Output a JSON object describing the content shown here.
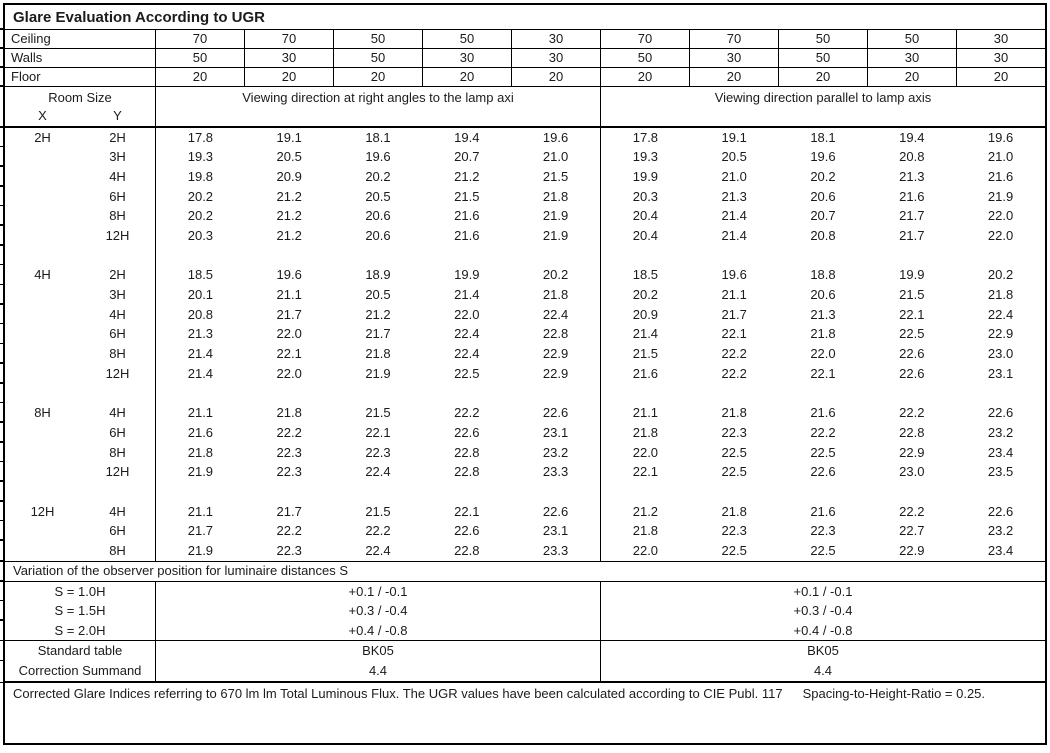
{
  "title": "Glare Evaluation According to UGR",
  "colors": {
    "text": "#1b1b1b",
    "border": "#000000",
    "background": "#ffffff"
  },
  "surface_rows": [
    {
      "label": "Ceiling",
      "values": [
        "70",
        "70",
        "50",
        "50",
        "30",
        "70",
        "70",
        "50",
        "50",
        "30"
      ]
    },
    {
      "label": "Walls",
      "values": [
        "50",
        "30",
        "50",
        "30",
        "30",
        "50",
        "30",
        "50",
        "30",
        "30"
      ]
    },
    {
      "label": "Floor",
      "values": [
        "20",
        "20",
        "20",
        "20",
        "20",
        "20",
        "20",
        "20",
        "20",
        "20"
      ]
    }
  ],
  "header": {
    "room_size_label": "Room Size",
    "x_label": "X",
    "y_label": "Y",
    "left_section": "Viewing direction at right angles to the lamp axi",
    "right_section": "Viewing direction parallel to lamp axis"
  },
  "ugr_blocks": [
    {
      "x": "2H",
      "rows": [
        {
          "y": "2H",
          "values": [
            "17.8",
            "19.1",
            "18.1",
            "19.4",
            "19.6",
            "17.8",
            "19.1",
            "18.1",
            "19.4",
            "19.6"
          ]
        },
        {
          "y": "3H",
          "values": [
            "19.3",
            "20.5",
            "19.6",
            "20.7",
            "21.0",
            "19.3",
            "20.5",
            "19.6",
            "20.8",
            "21.0"
          ]
        },
        {
          "y": "4H",
          "values": [
            "19.8",
            "20.9",
            "20.2",
            "21.2",
            "21.5",
            "19.9",
            "21.0",
            "20.2",
            "21.3",
            "21.6"
          ]
        },
        {
          "y": "6H",
          "values": [
            "20.2",
            "21.2",
            "20.5",
            "21.5",
            "21.8",
            "20.3",
            "21.3",
            "20.6",
            "21.6",
            "21.9"
          ]
        },
        {
          "y": "8H",
          "values": [
            "20.2",
            "21.2",
            "20.6",
            "21.6",
            "21.9",
            "20.4",
            "21.4",
            "20.7",
            "21.7",
            "22.0"
          ]
        },
        {
          "y": "12H",
          "values": [
            "20.3",
            "21.2",
            "20.6",
            "21.6",
            "21.9",
            "20.4",
            "21.4",
            "20.8",
            "21.7",
            "22.0"
          ]
        }
      ]
    },
    {
      "x": "4H",
      "rows": [
        {
          "y": "2H",
          "values": [
            "18.5",
            "19.6",
            "18.9",
            "19.9",
            "20.2",
            "18.5",
            "19.6",
            "18.8",
            "19.9",
            "20.2"
          ]
        },
        {
          "y": "3H",
          "values": [
            "20.1",
            "21.1",
            "20.5",
            "21.4",
            "21.8",
            "20.2",
            "21.1",
            "20.6",
            "21.5",
            "21.8"
          ]
        },
        {
          "y": "4H",
          "values": [
            "20.8",
            "21.7",
            "21.2",
            "22.0",
            "22.4",
            "20.9",
            "21.7",
            "21.3",
            "22.1",
            "22.4"
          ]
        },
        {
          "y": "6H",
          "values": [
            "21.3",
            "22.0",
            "21.7",
            "22.4",
            "22.8",
            "21.4",
            "22.1",
            "21.8",
            "22.5",
            "22.9"
          ]
        },
        {
          "y": "8H",
          "values": [
            "21.4",
            "22.1",
            "21.8",
            "22.4",
            "22.9",
            "21.5",
            "22.2",
            "22.0",
            "22.6",
            "23.0"
          ]
        },
        {
          "y": "12H",
          "values": [
            "21.4",
            "22.0",
            "21.9",
            "22.5",
            "22.9",
            "21.6",
            "22.2",
            "22.1",
            "22.6",
            "23.1"
          ]
        }
      ]
    },
    {
      "x": "8H",
      "rows": [
        {
          "y": "4H",
          "values": [
            "21.1",
            "21.8",
            "21.5",
            "22.2",
            "22.6",
            "21.1",
            "21.8",
            "21.6",
            "22.2",
            "22.6"
          ]
        },
        {
          "y": "6H",
          "values": [
            "21.6",
            "22.2",
            "22.1",
            "22.6",
            "23.1",
            "21.8",
            "22.3",
            "22.2",
            "22.8",
            "23.2"
          ]
        },
        {
          "y": "8H",
          "values": [
            "21.8",
            "22.3",
            "22.3",
            "22.8",
            "23.2",
            "22.0",
            "22.5",
            "22.5",
            "22.9",
            "23.4"
          ]
        },
        {
          "y": "12H",
          "values": [
            "21.9",
            "22.3",
            "22.4",
            "22.8",
            "23.3",
            "22.1",
            "22.5",
            "22.6",
            "23.0",
            "23.5"
          ]
        }
      ]
    },
    {
      "x": "12H",
      "rows": [
        {
          "y": "4H",
          "values": [
            "21.1",
            "21.7",
            "21.5",
            "22.1",
            "22.6",
            "21.2",
            "21.8",
            "21.6",
            "22.2",
            "22.6"
          ]
        },
        {
          "y": "6H",
          "values": [
            "21.7",
            "22.2",
            "22.2",
            "22.6",
            "23.1",
            "21.8",
            "22.3",
            "22.3",
            "22.7",
            "23.2"
          ]
        },
        {
          "y": "8H",
          "values": [
            "21.9",
            "22.3",
            "22.4",
            "22.8",
            "23.3",
            "22.0",
            "22.5",
            "22.5",
            "22.9",
            "23.4"
          ]
        }
      ]
    }
  ],
  "variation": {
    "heading": "Variation of the observer position for luminaire distances S",
    "rows": [
      {
        "label": "S = 1.0H",
        "left": "+0.1 / -0.1",
        "right": "+0.1 / -0.1"
      },
      {
        "label": "S = 1.5H",
        "left": "+0.3 / -0.4",
        "right": "+0.3 / -0.4"
      },
      {
        "label": "S = 2.0H",
        "left": "+0.4 / -0.8",
        "right": "+0.4 / -0.8"
      }
    ]
  },
  "summary_rows": [
    {
      "label": "Standard table",
      "left": "BK05",
      "right": "BK05"
    },
    {
      "label": "Correction Summand",
      "left": "4.4",
      "right": "4.4"
    }
  ],
  "footer": {
    "text1": "Corrected Glare Indices referring to 670 lm lm Total Luminous Flux. The UGR values have been calculated according to CIE Publ. 117",
    "text2": "Spacing-to-Height-Ratio = 0.25."
  }
}
